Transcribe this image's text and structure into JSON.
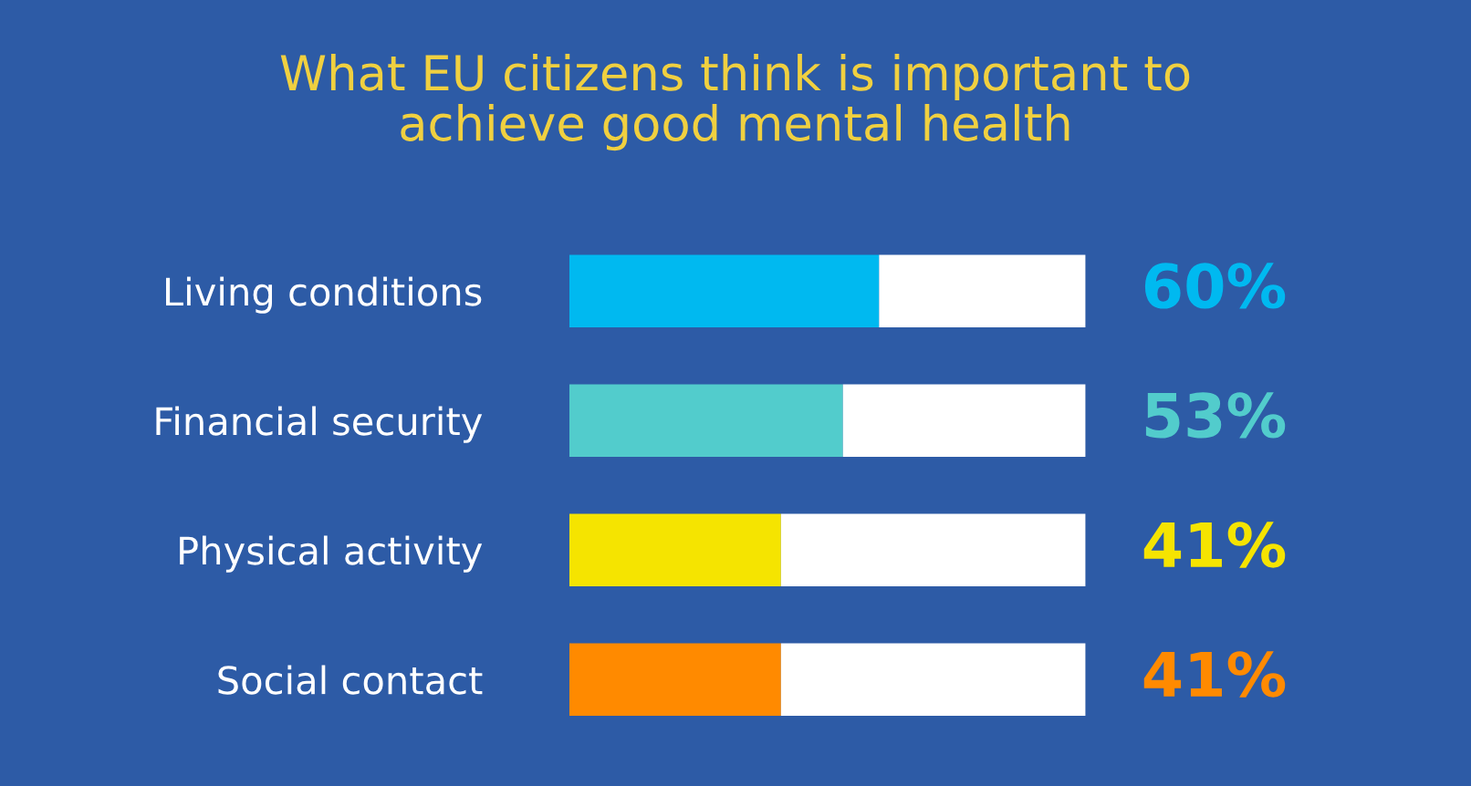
{
  "chart_data": {
    "type": "bar",
    "orientation": "horizontal",
    "stacked": true,
    "title": "What EU citizens think is important to\nachieve good mental health",
    "categories": [
      "Living conditions",
      "Financial security",
      "Physical activity",
      "Social contact"
    ],
    "series": [
      {
        "colors": [
          "#00b9f0",
          "#52cccc",
          "#f5e400",
          "#ff8a00"
        ],
        "values": [
          60,
          53,
          41,
          41
        ],
        "value_labels": [
          "60%",
          "53%",
          "41%",
          "41%"
        ]
      },
      {
        "color": "#ffffff",
        "values": [
          40,
          47,
          59,
          59
        ]
      }
    ],
    "xlim": [
      0,
      100
    ],
    "tick_labels": "y"
  }
}
